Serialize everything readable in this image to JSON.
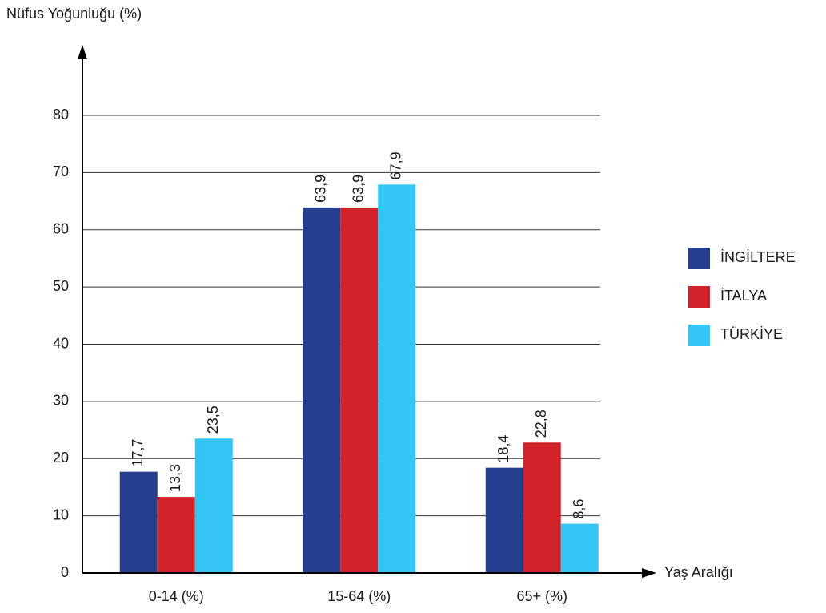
{
  "chart_data": {
    "type": "bar",
    "y_label": "Nüfus Yoğunluğu (%)",
    "x_label": "Yaş Aralığı",
    "categories": [
      "0-14 (%)",
      "15-64 (%)",
      "65+ (%)"
    ],
    "series": [
      {
        "name": "İNGİLTERE",
        "color": "#253f8e",
        "values": [
          17.7,
          63.9,
          18.4
        ],
        "value_labels": [
          "17,7",
          "63,9",
          "18,4"
        ]
      },
      {
        "name": "İTALYA",
        "color": "#d2232a",
        "values": [
          13.3,
          63.9,
          22.8
        ],
        "value_labels": [
          "13,3",
          "63,9",
          "22,8"
        ]
      },
      {
        "name": "TÜRKİYE",
        "color": "#33c5f3",
        "values": [
          23.5,
          67.9,
          8.6
        ],
        "value_labels": [
          "23,5",
          "67,9",
          "8,6"
        ]
      }
    ],
    "ylim": [
      0,
      80
    ],
    "yticks": [
      0,
      10,
      20,
      30,
      40,
      50,
      60,
      70,
      80
    ],
    "grid": true,
    "legend": "right"
  }
}
